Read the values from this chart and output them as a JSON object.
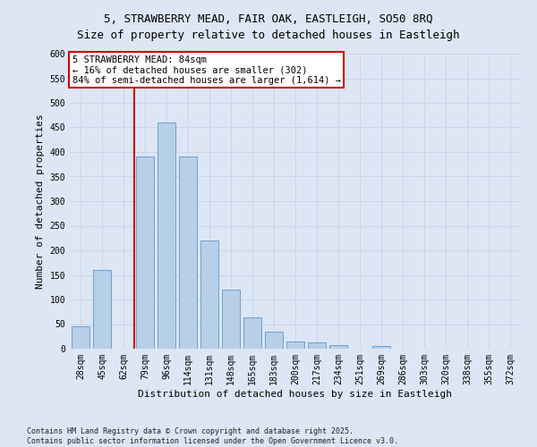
{
  "title_line1": "5, STRAWBERRY MEAD, FAIR OAK, EASTLEIGH, SO50 8RQ",
  "title_line2": "Size of property relative to detached houses in Eastleigh",
  "categories": [
    "28sqm",
    "45sqm",
    "62sqm",
    "79sqm",
    "96sqm",
    "114sqm",
    "131sqm",
    "148sqm",
    "165sqm",
    "183sqm",
    "200sqm",
    "217sqm",
    "234sqm",
    "251sqm",
    "269sqm",
    "286sqm",
    "303sqm",
    "320sqm",
    "338sqm",
    "355sqm",
    "372sqm"
  ],
  "values": [
    45,
    160,
    0,
    390,
    460,
    390,
    220,
    120,
    63,
    35,
    14,
    13,
    8,
    0,
    6,
    0,
    0,
    0,
    0,
    0,
    0
  ],
  "bar_color": "#b8cfe8",
  "bar_edge_color": "#6ca0d0",
  "ylabel": "Number of detached properties",
  "xlabel": "Distribution of detached houses by size in Eastleigh",
  "ylim": [
    0,
    600
  ],
  "yticks": [
    0,
    50,
    100,
    150,
    200,
    250,
    300,
    350,
    400,
    450,
    500,
    550,
    600
  ],
  "annotation_text": "5 STRAWBERRY MEAD: 84sqm\n← 16% of detached houses are smaller (302)\n84% of semi-detached houses are larger (1,614) →",
  "vline_index": 3,
  "annotation_box_color": "#ffffff",
  "annotation_box_edge": "#cc0000",
  "vline_color": "#cc0000",
  "grid_color": "#ccd5e5",
  "background_color": "#dce6f5",
  "footer_text": "Contains HM Land Registry data © Crown copyright and database right 2025.\nContains public sector information licensed under the Open Government Licence v3.0.",
  "title_fontsize": 9,
  "axis_label_fontsize": 8,
  "tick_fontsize": 7,
  "annotation_fontsize": 7.5,
  "footer_fontsize": 6
}
